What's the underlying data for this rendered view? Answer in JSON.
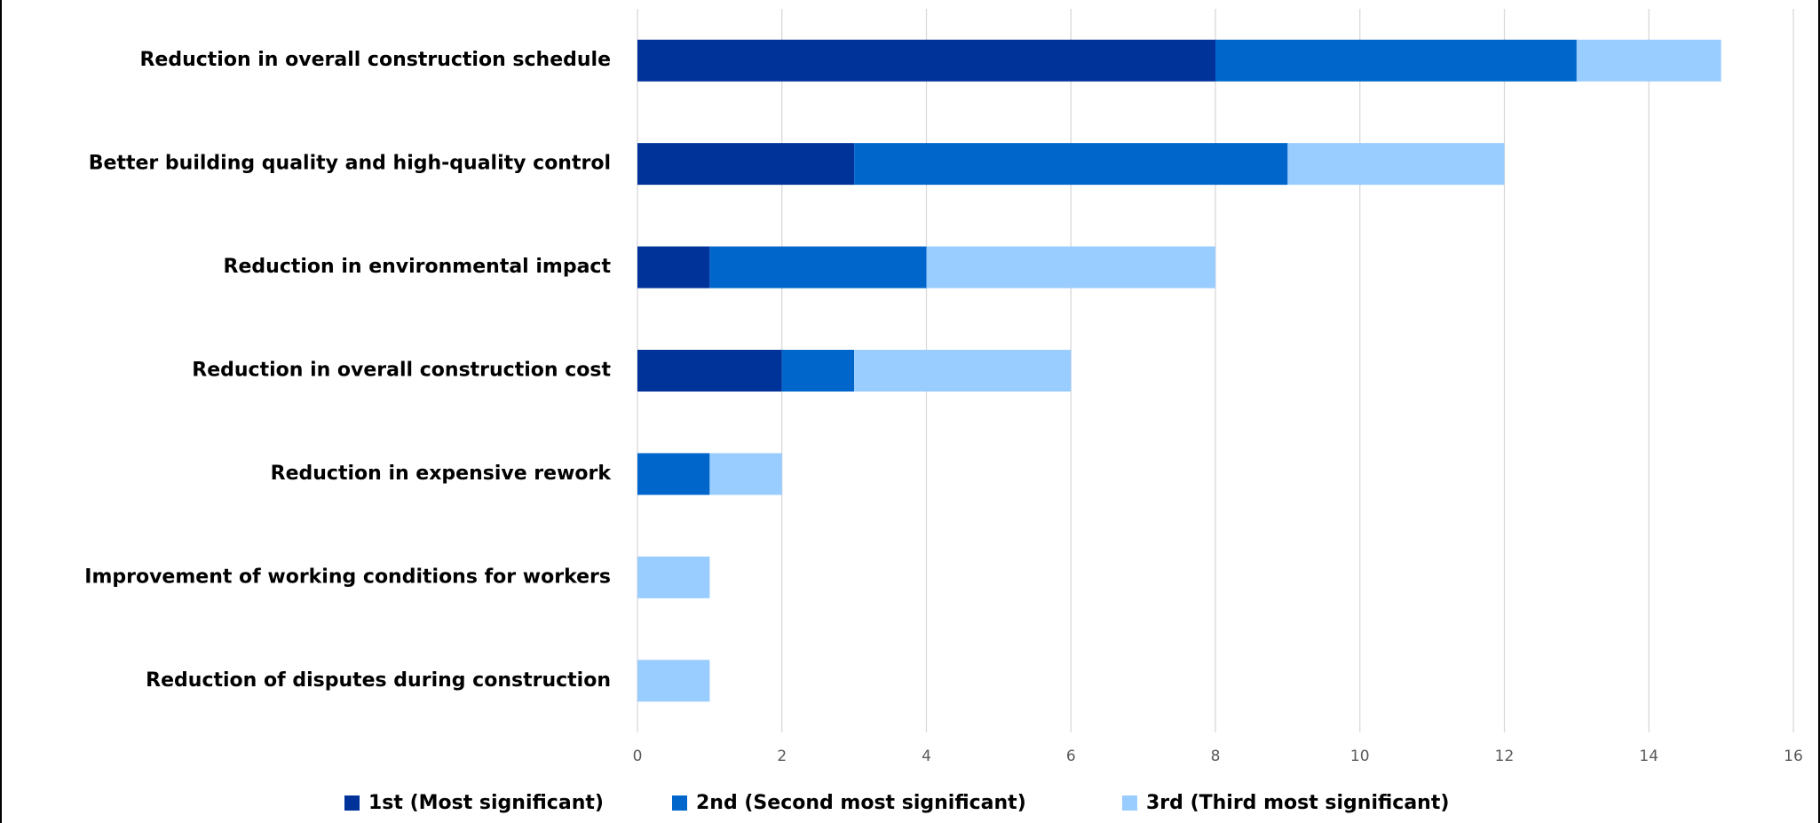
{
  "chart_data": {
    "type": "bar",
    "orientation": "horizontal",
    "stacked": true,
    "categories": [
      "Reduction in overall construction schedule",
      "Better building quality and high-quality control",
      "Reduction in environmental impact",
      "Reduction in overall construction cost",
      "Reduction in expensive rework",
      "Improvement of working conditions for workers",
      "Reduction of disputes during construction"
    ],
    "series": [
      {
        "name": "1st (Most significant)",
        "color": "#003399",
        "values": [
          8,
          3,
          1,
          2,
          0,
          0,
          0
        ]
      },
      {
        "name": "2nd (Second most significant)",
        "color": "#0066cc",
        "values": [
          5,
          6,
          3,
          1,
          1,
          0,
          0
        ]
      },
      {
        "name": "3rd (Third most significant)",
        "color": "#99ccff",
        "values": [
          2,
          3,
          4,
          3,
          1,
          1,
          1
        ]
      }
    ],
    "xlim": [
      0,
      16
    ],
    "xticks": [
      0,
      2,
      4,
      6,
      8,
      10,
      12,
      14,
      16
    ],
    "grid": true,
    "legend": "bottom"
  }
}
